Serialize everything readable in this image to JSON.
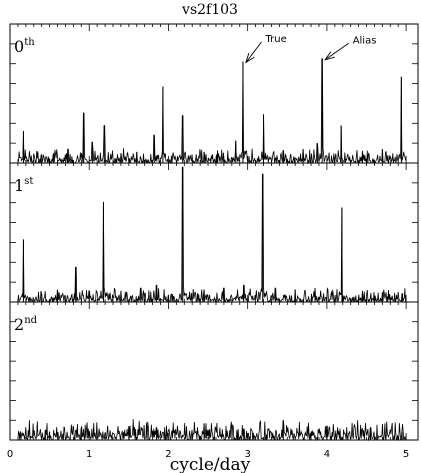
{
  "chart_data": {
    "type": "line",
    "title": "vs2f103",
    "xlabel": "cycle/day",
    "xlim": [
      0,
      5.15
    ],
    "x_ticks": [
      0,
      1,
      2,
      3,
      4,
      5
    ],
    "x_tick_labels": [
      "0",
      "1",
      "2",
      "3",
      "4",
      "5"
    ],
    "panels": [
      {
        "label_base": "0",
        "label_sup": "th",
        "ylim": [
          0,
          1
        ],
        "peaks": [
          {
            "x": 0.17,
            "y": 0.23
          },
          {
            "x": 0.4,
            "y": 0.06
          },
          {
            "x": 0.55,
            "y": 0.06
          },
          {
            "x": 0.73,
            "y": 0.1
          },
          {
            "x": 0.93,
            "y": 0.36
          },
          {
            "x": 1.04,
            "y": 0.15
          },
          {
            "x": 1.19,
            "y": 0.27
          },
          {
            "x": 1.4,
            "y": 0.07
          },
          {
            "x": 1.6,
            "y": 0.08
          },
          {
            "x": 1.82,
            "y": 0.2
          },
          {
            "x": 1.93,
            "y": 0.55
          },
          {
            "x": 2.18,
            "y": 0.34
          },
          {
            "x": 2.45,
            "y": 0.08
          },
          {
            "x": 2.62,
            "y": 0.09
          },
          {
            "x": 2.85,
            "y": 0.16
          },
          {
            "x": 2.94,
            "y": 0.73
          },
          {
            "x": 3.2,
            "y": 0.35
          },
          {
            "x": 3.45,
            "y": 0.09
          },
          {
            "x": 3.7,
            "y": 0.1
          },
          {
            "x": 3.88,
            "y": 0.14
          },
          {
            "x": 3.94,
            "y": 0.75
          },
          {
            "x": 4.18,
            "y": 0.27
          },
          {
            "x": 4.45,
            "y": 0.08
          },
          {
            "x": 4.7,
            "y": 0.1
          },
          {
            "x": 4.94,
            "y": 0.62
          }
        ],
        "annotations": [
          {
            "text": "True",
            "target_x": 2.94,
            "target_y": 0.73,
            "text_x": 3.15,
            "text_y": 0.9
          },
          {
            "text": "Alias",
            "target_x": 3.94,
            "target_y": 0.75,
            "text_x": 4.25,
            "text_y": 0.89
          }
        ]
      },
      {
        "label_base": "1",
        "label_sup": "st",
        "ylim": [
          0,
          1
        ],
        "peaks": [
          {
            "x": 0.17,
            "y": 0.45
          },
          {
            "x": 0.4,
            "y": 0.06
          },
          {
            "x": 0.6,
            "y": 0.07
          },
          {
            "x": 0.83,
            "y": 0.25
          },
          {
            "x": 1.0,
            "y": 0.08
          },
          {
            "x": 1.18,
            "y": 0.72
          },
          {
            "x": 1.4,
            "y": 0.08
          },
          {
            "x": 1.65,
            "y": 0.1
          },
          {
            "x": 1.85,
            "y": 0.12
          },
          {
            "x": 2.18,
            "y": 0.97
          },
          {
            "x": 2.45,
            "y": 0.09
          },
          {
            "x": 2.7,
            "y": 0.1
          },
          {
            "x": 2.95,
            "y": 0.12
          },
          {
            "x": 3.19,
            "y": 0.92
          },
          {
            "x": 3.35,
            "y": 0.1
          },
          {
            "x": 3.6,
            "y": 0.09
          },
          {
            "x": 3.85,
            "y": 0.1
          },
          {
            "x": 4.19,
            "y": 0.68
          },
          {
            "x": 4.45,
            "y": 0.08
          },
          {
            "x": 4.7,
            "y": 0.07
          },
          {
            "x": 4.95,
            "y": 0.06
          }
        ],
        "annotations": []
      },
      {
        "label_base": "2",
        "label_sup": "nd",
        "ylim": [
          0,
          1
        ],
        "peaks": [
          {
            "x": 0.45,
            "y": 0.07
          },
          {
            "x": 0.9,
            "y": 0.08
          },
          {
            "x": 1.5,
            "y": 0.1
          },
          {
            "x": 1.85,
            "y": 0.09
          },
          {
            "x": 2.45,
            "y": 0.12
          },
          {
            "x": 2.95,
            "y": 0.08
          },
          {
            "x": 3.45,
            "y": 0.14
          },
          {
            "x": 4.0,
            "y": 0.1
          },
          {
            "x": 4.55,
            "y": 0.09
          },
          {
            "x": 4.95,
            "y": 0.06
          }
        ],
        "annotations": []
      }
    ]
  }
}
